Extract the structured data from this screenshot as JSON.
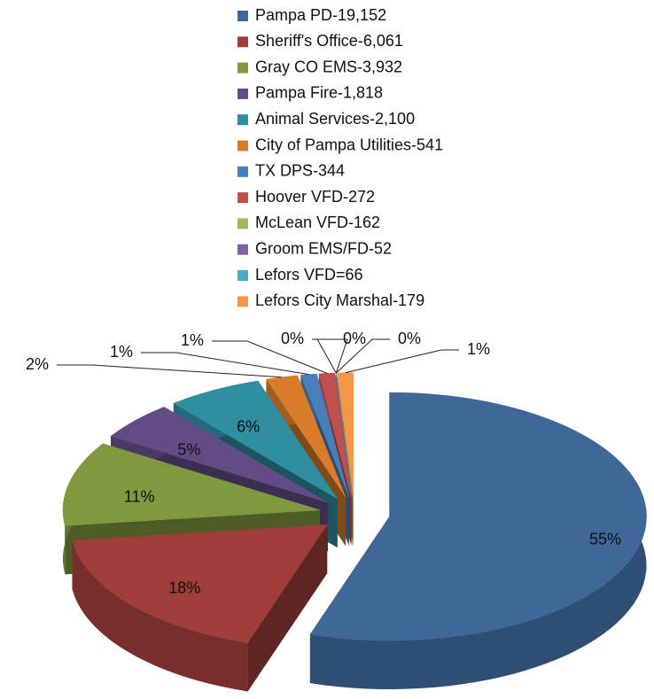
{
  "chart_data": {
    "type": "pie",
    "categories": [
      "Pampa PD-19,152",
      "Sheriff's Office-6,061",
      "Gray CO EMS-3,932",
      "Pampa Fire-1,818",
      "Animal Services-2,100",
      "City of Pampa Utilities-541",
      "TX DPS-344",
      "Hoover VFD-272",
      "McLean VFD-162",
      "Groom EMS/FD-52",
      "Lefors VFD=66",
      "Lefors City Marshal-179"
    ],
    "values": [
      55,
      18,
      11,
      5,
      6,
      2,
      1,
      1,
      0,
      0,
      0,
      1
    ],
    "value_labels": [
      "55%",
      "18%",
      "11%",
      "5%",
      "6%",
      "2%",
      "1%",
      "1%",
      "0%",
      "0%",
      "0%",
      "1%"
    ],
    "colors": [
      "#3f6899",
      "#9e3d3a",
      "#7e9a3e",
      "#634c86",
      "#2f8ea0",
      "#d97c2a",
      "#4a7ebb",
      "#c0504d",
      "#9bbb59",
      "#8064a2",
      "#4bacc6",
      "#f79646"
    ]
  }
}
